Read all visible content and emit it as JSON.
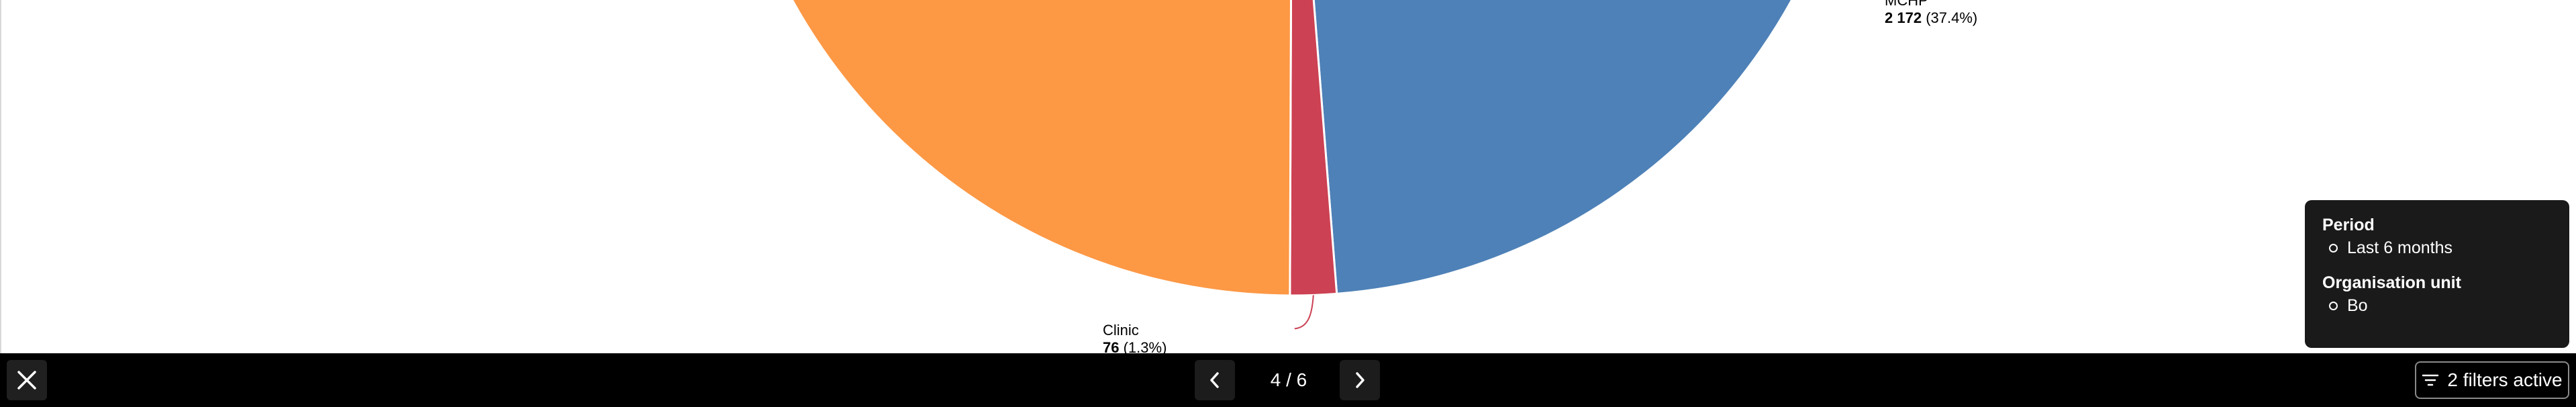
{
  "chart_data": {
    "type": "pie",
    "slices": [
      {
        "name": "MCHP",
        "value": 2172,
        "value_text": "2 172",
        "percent_text": "(37.4%)",
        "color": "#4e81b7"
      },
      {
        "name": "Clinic",
        "value": 76,
        "value_text": "76",
        "percent_text": "(1.3%)",
        "color": "#cc4153"
      },
      {
        "name": "",
        "value": null,
        "color": "#fd9845"
      }
    ],
    "start_angle_deg": 85.5,
    "label_line_color": "#cc4153"
  },
  "filters_panel": {
    "groups": [
      {
        "title": "Period",
        "items": [
          "Last 6 months"
        ]
      },
      {
        "title": "Organisation unit",
        "items": [
          "Bo"
        ]
      }
    ]
  },
  "bottom_bar": {
    "page_indicator": "4 / 6",
    "filters_button_label": "2 filters active",
    "close_icon": "close-icon",
    "prev_icon": "chevron-left-icon",
    "next_icon": "chevron-right-icon",
    "filter_icon": "filter-lines-icon"
  }
}
